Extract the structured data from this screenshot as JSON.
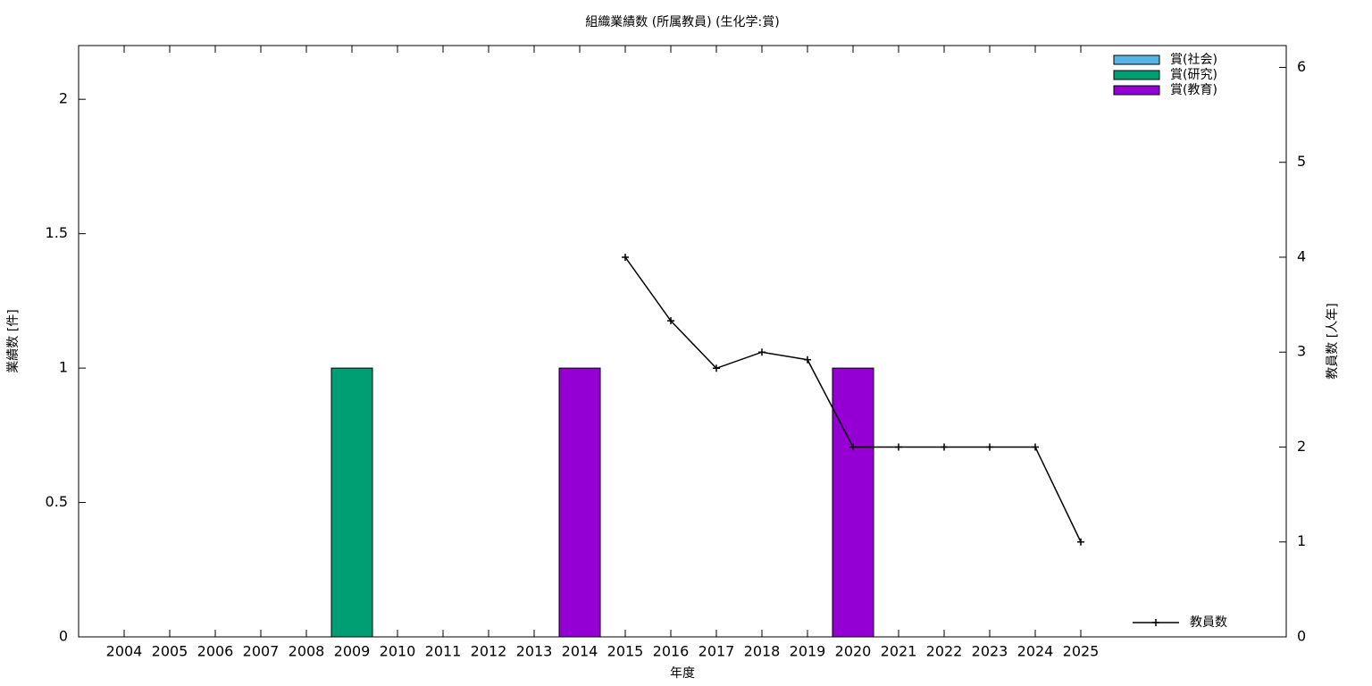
{
  "chart_data": {
    "type": "bar",
    "title": "組織業績数 (所属教員) (生化学:賞)",
    "x_label": "年度",
    "y_label": "業績数 [件]",
    "y2_label": "教員数 [人年]",
    "categories": [
      "2004",
      "2005",
      "2006",
      "2007",
      "2008",
      "2009",
      "2010",
      "2011",
      "2012",
      "2013",
      "2014",
      "2015",
      "2016",
      "2017",
      "2018",
      "2019",
      "2020",
      "2021",
      "2022",
      "2023",
      "2024",
      "2025"
    ],
    "stacked": true,
    "series": [
      {
        "name": "賞(社会)",
        "color": "#56b4e9",
        "values": [
          0,
          0,
          0,
          0,
          0,
          0,
          0,
          0,
          0,
          0,
          0,
          0,
          0,
          0,
          0,
          0,
          0,
          0,
          0,
          0,
          0,
          0
        ]
      },
      {
        "name": "賞(研究)",
        "color": "#009e73",
        "values": [
          0,
          0,
          0,
          0,
          0,
          1,
          0,
          0,
          0,
          0,
          0,
          0,
          0,
          0,
          0,
          0,
          0,
          0,
          0,
          0,
          0,
          0
        ]
      },
      {
        "name": "賞(教育)",
        "color": "#9400d3",
        "values": [
          0,
          0,
          0,
          0,
          0,
          0,
          0,
          0,
          0,
          0,
          1,
          0,
          0,
          0,
          0,
          0,
          1,
          0,
          0,
          0,
          0,
          0
        ]
      },
      {
        "name": "教員数",
        "type": "line",
        "axis": "y2",
        "color": "#000000",
        "values": [
          null,
          null,
          null,
          null,
          null,
          null,
          null,
          null,
          null,
          null,
          null,
          4,
          3.33,
          2.83,
          3,
          2.92,
          2,
          2,
          2,
          2,
          2,
          1
        ]
      }
    ],
    "ylim": [
      0,
      2.2
    ],
    "yticks": [
      0,
      0.5,
      1,
      1.5,
      2
    ],
    "y2lim": [
      0,
      6.23
    ],
    "y2ticks": [
      0,
      1,
      2,
      3,
      4,
      5,
      6
    ]
  }
}
